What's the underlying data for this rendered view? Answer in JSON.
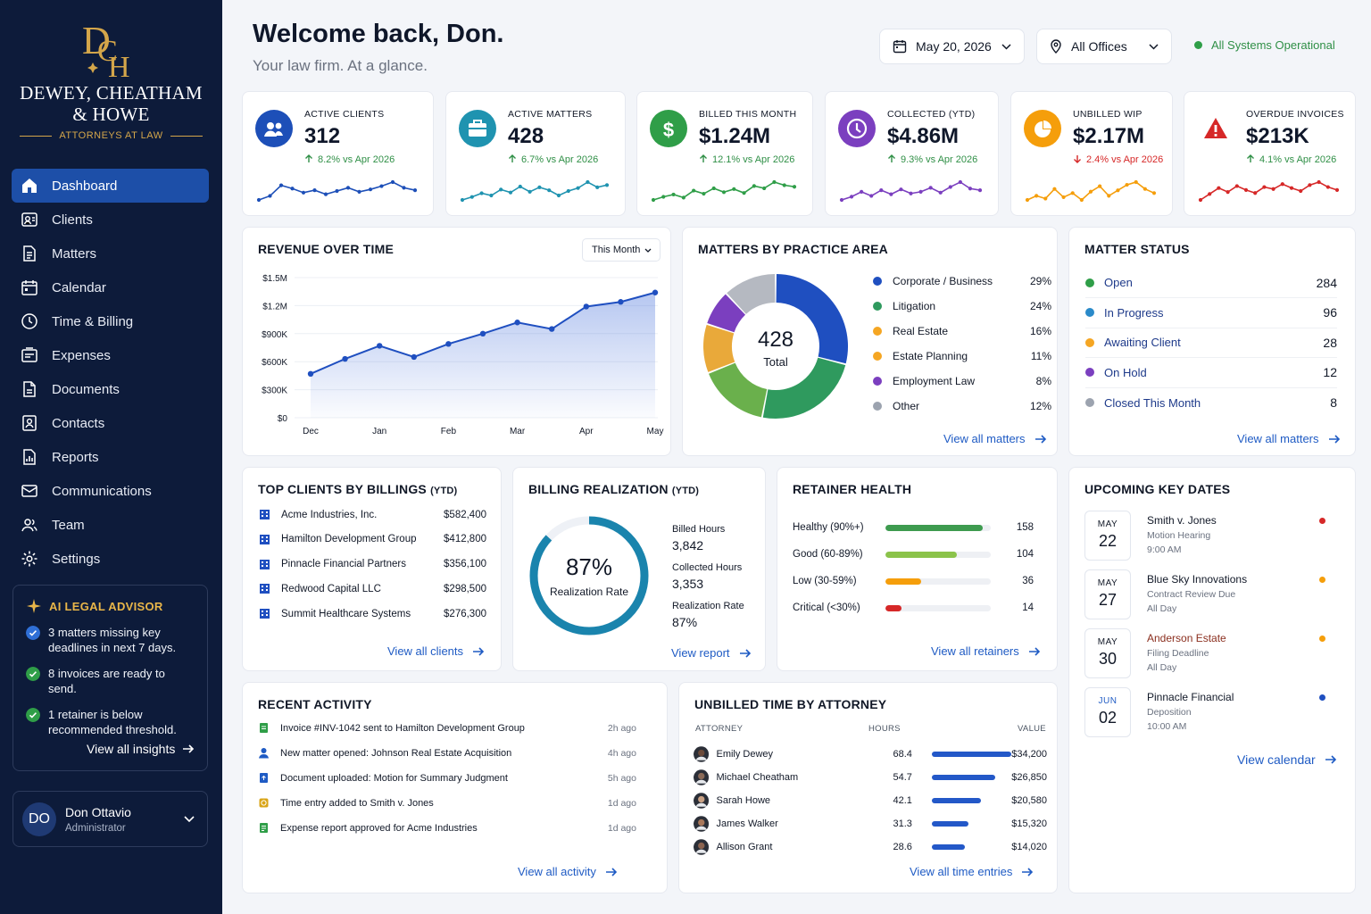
{
  "brand": {
    "monogram": "DCH",
    "name_line1": "DEWEY, CHEATHAM",
    "name_line2": "& HOWE",
    "subtitle": "ATTORNEYS AT LAW",
    "gold": "#d4a64a"
  },
  "nav": {
    "items": [
      {
        "label": "Dashboard",
        "icon": "home-icon",
        "active": true
      },
      {
        "label": "Clients",
        "icon": "clients-icon"
      },
      {
        "label": "Matters",
        "icon": "document-icon"
      },
      {
        "label": "Calendar",
        "icon": "calendar-icon"
      },
      {
        "label": "Time & Billing",
        "icon": "clock-icon"
      },
      {
        "label": "Expenses",
        "icon": "receipt-icon"
      },
      {
        "label": "Documents",
        "icon": "file-icon"
      },
      {
        "label": "Contacts",
        "icon": "contacts-icon"
      },
      {
        "label": "Reports",
        "icon": "report-icon"
      },
      {
        "label": "Communications",
        "icon": "mail-icon"
      },
      {
        "label": "Team",
        "icon": "team-icon"
      },
      {
        "label": "Settings",
        "icon": "gear-icon"
      }
    ]
  },
  "ai_advisor": {
    "title": "AI LEGAL ADVISOR",
    "items": [
      {
        "text": "3 matters missing key deadlines in next 7 days.",
        "color": "#2f6fd6"
      },
      {
        "text": "8 invoices are ready to send.",
        "color": "#2f9e48"
      },
      {
        "text": "1 retainer is below recommended threshold.",
        "color": "#2f9e48"
      }
    ],
    "link": "View all insights"
  },
  "user": {
    "initials": "DO",
    "name": "Don Ottavio",
    "role": "Administrator"
  },
  "header": {
    "title": "Welcome back, Don.",
    "subtitle": "Your law firm. At a glance.",
    "date": "May 20, 2026",
    "office": "All Offices",
    "status": "All Systems Operational"
  },
  "kpis": [
    {
      "label": "ACTIVE CLIENTS",
      "value": "312",
      "change": "8.2% vs Apr 2026",
      "direction": "up",
      "color": "#1d4fb8",
      "icon": "users-icon",
      "spark": [
        40,
        45,
        58,
        54,
        49,
        52,
        47,
        51,
        55,
        50,
        53,
        57,
        62,
        55,
        52
      ]
    },
    {
      "label": "ACTIVE MATTERS",
      "value": "428",
      "change": "6.7% vs Apr 2026",
      "direction": "up",
      "color": "#1f93b0",
      "icon": "briefcase-icon",
      "spark": [
        38,
        42,
        47,
        44,
        52,
        48,
        56,
        49,
        55,
        51,
        44,
        50,
        54,
        62,
        55,
        58
      ]
    },
    {
      "label": "BILLED THIS MONTH",
      "value": "$1.24M",
      "change": "12.1% vs Apr 2026",
      "direction": "up",
      "color": "#2f9e48",
      "icon": "dollar-icon",
      "spark": [
        40,
        44,
        47,
        43,
        52,
        48,
        55,
        50,
        54,
        49,
        58,
        55,
        63,
        59,
        57
      ]
    },
    {
      "label": "COLLECTED (YTD)",
      "value": "$4.86M",
      "change": "9.3% vs Apr 2026",
      "direction": "up",
      "color": "#7b3fbf",
      "icon": "clock-icon",
      "spark": [
        40,
        44,
        50,
        45,
        52,
        47,
        53,
        48,
        50,
        55,
        49,
        56,
        62,
        54,
        52
      ]
    },
    {
      "label": "UNBILLED WIP",
      "value": "$2.17M",
      "change": "2.4% vs Apr 2026",
      "direction": "down",
      "color": "#f59e0b",
      "icon": "pie-icon",
      "spark": [
        45,
        48,
        46,
        53,
        47,
        50,
        45,
        51,
        55,
        48,
        52,
        56,
        58,
        53,
        50
      ]
    },
    {
      "label": "OVERDUE INVOICES",
      "value": "$213K",
      "change": "4.1% vs Apr 2026",
      "direction": "up",
      "color": "#d62828",
      "icon": "warning-icon",
      "spark": [
        40,
        46,
        52,
        48,
        54,
        50,
        47,
        53,
        51,
        56,
        52,
        49,
        55,
        58,
        53,
        50
      ]
    }
  ],
  "revenue": {
    "title": "REVENUE OVER TIME",
    "period": "This Month",
    "yticks": [
      "$1.5M",
      "$1.2M",
      "$900K",
      "$600K",
      "$300K",
      "$0"
    ],
    "months": [
      "Dec",
      "Jan",
      "Feb",
      "Mar",
      "Apr",
      "May"
    ]
  },
  "chart_data": {
    "type": "area",
    "title": "REVENUE OVER TIME",
    "x": [
      "Dec",
      "",
      "Jan",
      "",
      "Feb",
      "",
      "Mar",
      "",
      "Apr",
      "",
      "May"
    ],
    "values": [
      470000,
      630000,
      770000,
      650000,
      790000,
      900000,
      1020000,
      950000,
      1190000,
      1240000,
      1340000
    ],
    "ylim": [
      0,
      1500000
    ],
    "grid": true
  },
  "practice": {
    "title": "MATTERS BY PRACTICE AREA",
    "total": "428",
    "total_label": "Total",
    "areas": [
      {
        "name": "Corporate / Business",
        "pct": "29%",
        "value": 29,
        "color": "#1f4fc0"
      },
      {
        "name": "Litigation",
        "pct": "24%",
        "value": 24,
        "color": "#2f9a5e"
      },
      {
        "name": "Real Estate",
        "pct": "16%",
        "value": 16,
        "color": "#6ab04c"
      },
      {
        "name": "Estate Planning",
        "pct": "11%",
        "value": 11,
        "color": "#e9a93a"
      },
      {
        "name": "Employment Law",
        "pct": "8%",
        "value": 8,
        "color": "#7b3fbf"
      },
      {
        "name": "Other",
        "pct": "12%",
        "value": 12,
        "color": "#b5b9c1"
      }
    ],
    "legend_colors": [
      "#1f4fc0",
      "#2f9a5e",
      "#f5a623",
      "#f5a623",
      "#7b3fbf",
      "#9ca3af"
    ],
    "link": "View all matters"
  },
  "matter_status": {
    "title": "MATTER STATUS",
    "rows": [
      {
        "label": "Open",
        "count": "284",
        "color": "#2f9e48"
      },
      {
        "label": "In Progress",
        "count": "96",
        "color": "#2a8ac9"
      },
      {
        "label": "Awaiting Client",
        "count": "28",
        "color": "#f5a623"
      },
      {
        "label": "On Hold",
        "count": "12",
        "color": "#7b3fbf"
      },
      {
        "label": "Closed This Month",
        "count": "8",
        "color": "#9ca3af"
      }
    ],
    "link": "View all matters"
  },
  "top_clients": {
    "title": "TOP CLIENTS BY BILLINGS",
    "title_suffix": "(YTD)",
    "rows": [
      {
        "name": "Acme Industries, Inc.",
        "value": "$582,400"
      },
      {
        "name": "Hamilton Development Group",
        "value": "$412,800"
      },
      {
        "name": "Pinnacle Financial Partners",
        "value": "$356,100"
      },
      {
        "name": "Redwood Capital LLC",
        "value": "$298,500"
      },
      {
        "name": "Summit Healthcare Systems",
        "value": "$276,300"
      }
    ],
    "link": "View all clients"
  },
  "realization": {
    "title": "BILLING REALIZATION",
    "title_suffix": "(YTD)",
    "percent": "87%",
    "fraction": 0.87,
    "label": "Realization Rate",
    "billed_label": "Billed Hours",
    "billed": "3,842",
    "collected_label": "Collected Hours",
    "collected": "3,353",
    "rate_label": "Realization Rate",
    "rate": "87%",
    "link": "View report"
  },
  "retainer": {
    "title": "RETAINER HEALTH",
    "rows": [
      {
        "label": "Healthy (90%+)",
        "count": "158",
        "fraction": 0.92,
        "color": "#3e9b4f"
      },
      {
        "label": "Good (60-89%)",
        "count": "104",
        "fraction": 0.68,
        "color": "#8bc34a"
      },
      {
        "label": "Low (30-59%)",
        "count": "36",
        "fraction": 0.34,
        "color": "#f59e0b"
      },
      {
        "label": "Critical (<30%)",
        "count": "14",
        "fraction": 0.15,
        "color": "#d62828"
      }
    ],
    "link": "View all retainers"
  },
  "key_dates": {
    "title": "UPCOMING KEY DATES",
    "rows": [
      {
        "month": "MAY",
        "day": "22",
        "title": "Smith v. Jones",
        "sub": "Motion Hearing",
        "time": "9:00 AM",
        "dot": "#d62828",
        "accent": false
      },
      {
        "month": "MAY",
        "day": "27",
        "title": "Blue Sky Innovations",
        "sub": "Contract Review Due",
        "time": "All Day",
        "dot": "#f59e0b",
        "accent": false
      },
      {
        "month": "MAY",
        "day": "30",
        "title": "Anderson Estate",
        "sub": "Filing Deadline",
        "time": "All Day",
        "dot": "#f59e0b",
        "accent": true
      },
      {
        "month": "JUN",
        "day": "02",
        "title": "Pinnacle Financial",
        "sub": "Deposition",
        "time": "10:00 AM",
        "dot": "#1f4fc0",
        "accent": false
      }
    ],
    "link": "View calendar"
  },
  "recent_activity": {
    "title": "RECENT ACTIVITY",
    "rows": [
      {
        "text": "Invoice #INV-1042 sent to Hamilton Development Group",
        "time": "2h ago",
        "icon": "invoice-icon",
        "color": "#2f9e48"
      },
      {
        "text": "New matter opened: Johnson Real Estate Acquisition",
        "time": "4h ago",
        "icon": "user-icon",
        "color": "#1f5bc4"
      },
      {
        "text": "Document uploaded: Motion for Summary Judgment",
        "time": "5h ago",
        "icon": "upload-icon",
        "color": "#1f5bc4"
      },
      {
        "text": "Time entry added to Smith v. Jones",
        "time": "1d ago",
        "icon": "time-entry-icon",
        "color": "#d9a518"
      },
      {
        "text": "Expense report approved for Acme Industries",
        "time": "1d ago",
        "icon": "expense-icon",
        "color": "#2f9e48"
      }
    ],
    "link": "View all activity"
  },
  "unbilled": {
    "title": "UNBILLED TIME BY ATTORNEY",
    "col_attorney": "ATTORNEY",
    "col_hours": "HOURS",
    "col_value": "VALUE",
    "rows": [
      {
        "name": "Emily Dewey",
        "hours": "68.4",
        "value": "$34,200",
        "fraction": 1.0,
        "skin": "#6b4a3a"
      },
      {
        "name": "Michael Cheatham",
        "hours": "54.7",
        "value": "$26,850",
        "fraction": 0.8,
        "skin": "#8a6a58"
      },
      {
        "name": "Sarah Howe",
        "hours": "42.1",
        "value": "$20,580",
        "fraction": 0.62,
        "skin": "#c9a184"
      },
      {
        "name": "James Walker",
        "hours": "31.3",
        "value": "$15,320",
        "fraction": 0.46,
        "skin": "#a8775a"
      },
      {
        "name": "Allison Grant",
        "hours": "28.6",
        "value": "$14,020",
        "fraction": 0.42,
        "skin": "#8c6450"
      }
    ],
    "link": "View all time entries"
  }
}
